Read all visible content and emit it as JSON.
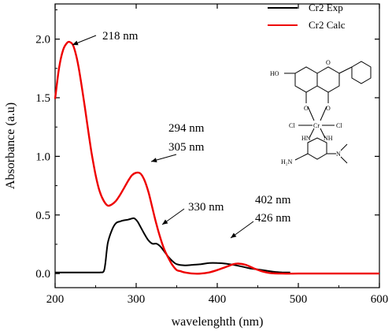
{
  "colors": {
    "exp": "#000000",
    "calc": "#ee0000",
    "axis": "#000000"
  },
  "chart_data": {
    "type": "line",
    "xlabel": "wavelenghth (nm)",
    "ylabel": "Absorbance (a.u)",
    "xlim": [
      200,
      600
    ],
    "ylim": [
      -0.12,
      2.3
    ],
    "xticks": [
      200,
      300,
      400,
      500,
      600
    ],
    "yticks": [
      0.0,
      0.5,
      1.0,
      1.5,
      2.0
    ],
    "xtick_labels": [
      "200",
      "300",
      "400",
      "500",
      "600"
    ],
    "ytick_labels": [
      "0.0",
      "0.5",
      "1.0",
      "1.5",
      "2.0"
    ],
    "grid": false,
    "legend_position": "top-right",
    "series": [
      {
        "name": "Cr2 Exp",
        "color": "#000000",
        "x": [
          200,
          220,
          240,
          255,
          260,
          262,
          265,
          270,
          275,
          280,
          285,
          290,
          295,
          298,
          302,
          306,
          310,
          315,
          320,
          325,
          330,
          335,
          340,
          345,
          350,
          360,
          370,
          380,
          390,
          400,
          410,
          420,
          430,
          440,
          450,
          460,
          470,
          480,
          490
        ],
        "y": [
          0.01,
          0.01,
          0.01,
          0.01,
          0.02,
          0.09,
          0.26,
          0.37,
          0.43,
          0.445,
          0.455,
          0.46,
          0.47,
          0.47,
          0.44,
          0.39,
          0.34,
          0.285,
          0.255,
          0.255,
          0.23,
          0.185,
          0.14,
          0.105,
          0.08,
          0.07,
          0.075,
          0.08,
          0.09,
          0.09,
          0.085,
          0.075,
          0.06,
          0.045,
          0.035,
          0.025,
          0.015,
          0.01,
          0.01
        ]
      },
      {
        "name": "Cr2 Calc",
        "color": "#ee0000",
        "x": [
          200,
          205,
          210,
          215,
          218,
          222,
          226,
          230,
          235,
          240,
          245,
          250,
          255,
          260,
          265,
          270,
          275,
          280,
          285,
          290,
          295,
          300,
          305,
          310,
          315,
          320,
          325,
          330,
          335,
          340,
          345,
          350,
          355,
          360,
          370,
          380,
          390,
          400,
          410,
          420,
          426,
          435,
          445,
          455,
          465,
          480,
          500,
          520,
          550,
          580,
          600
        ],
        "y": [
          1.49,
          1.76,
          1.91,
          1.97,
          1.975,
          1.95,
          1.86,
          1.72,
          1.5,
          1.26,
          1.03,
          0.84,
          0.7,
          0.62,
          0.58,
          0.59,
          0.62,
          0.67,
          0.73,
          0.79,
          0.84,
          0.86,
          0.855,
          0.8,
          0.7,
          0.56,
          0.42,
          0.3,
          0.2,
          0.13,
          0.07,
          0.03,
          0.02,
          0.01,
          0.0,
          0.0,
          0.01,
          0.03,
          0.055,
          0.08,
          0.085,
          0.075,
          0.045,
          0.02,
          0.005,
          0.0,
          0.0,
          0.0,
          0.0,
          0.0,
          0.0
        ]
      }
    ],
    "annotations": [
      {
        "text": "218 nm",
        "x": 218,
        "y": 1.975
      },
      {
        "text": "294 nm",
        "x": 305,
        "y": 0.86
      },
      {
        "text": "305 nm",
        "x": 305,
        "y": 0.86
      },
      {
        "text": "330 nm",
        "x": 330,
        "y": 0.23
      },
      {
        "text": "402 nm",
        "x": 400,
        "y": 0.09
      },
      {
        "text": "426 nm",
        "x": 400,
        "y": 0.09
      }
    ]
  },
  "structure": {
    "labels": {
      "ho": "HO",
      "o_ring": "O",
      "o_left": "O",
      "o_right": "O",
      "cl_left": "Cl",
      "cr": "Cr",
      "cl_right": "Cl",
      "nh_left": "HN",
      "nh_right": "NH",
      "h2n": "H₂N",
      "n_right": "N"
    }
  }
}
